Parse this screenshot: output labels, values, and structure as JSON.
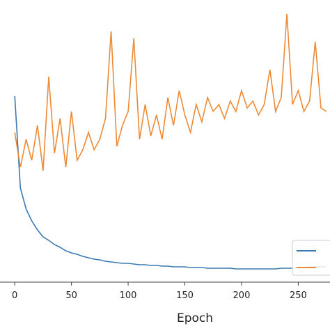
{
  "chart_data": {
    "type": "line",
    "xlabel": "Epoch",
    "x": [
      0,
      5,
      10,
      15,
      20,
      25,
      30,
      35,
      40,
      45,
      50,
      55,
      60,
      65,
      70,
      75,
      80,
      85,
      90,
      95,
      100,
      105,
      110,
      115,
      120,
      125,
      130,
      135,
      140,
      145,
      150,
      155,
      160,
      165,
      170,
      175,
      180,
      185,
      190,
      195,
      200,
      205,
      210,
      215,
      220,
      225,
      230,
      235,
      240,
      245,
      250,
      255,
      260,
      265,
      270,
      275
    ],
    "series": [
      {
        "color": "#3a78b0",
        "values": [
          267,
          135,
          105,
          88,
          75,
          65,
          60,
          54,
          50,
          45,
          42,
          40,
          37,
          35,
          33,
          32,
          30,
          29,
          28,
          27,
          27,
          26,
          25,
          25,
          24,
          24,
          23,
          23,
          22,
          22,
          22,
          21,
          21,
          21,
          20,
          20,
          20,
          20,
          20,
          19,
          19,
          19,
          19,
          19,
          19,
          19,
          19,
          20,
          20,
          20,
          21,
          21,
          22,
          22,
          22,
          22
        ]
      },
      {
        "color": "#ee8a35",
        "values": [
          215,
          165,
          205,
          175,
          225,
          160,
          295,
          185,
          235,
          165,
          245,
          175,
          190,
          215,
          190,
          205,
          235,
          360,
          195,
          225,
          245,
          350,
          205,
          255,
          210,
          240,
          205,
          265,
          225,
          275,
          240,
          215,
          255,
          230,
          265,
          245,
          255,
          235,
          260,
          245,
          275,
          250,
          260,
          240,
          255,
          305,
          245,
          265,
          385,
          255,
          275,
          245,
          260,
          345,
          250,
          245
        ]
      }
    ],
    "xlim": [
      -13,
      278
    ],
    "xticks": [
      0,
      50,
      100,
      150,
      200,
      250
    ],
    "ylim": [
      0,
      405
    ]
  }
}
